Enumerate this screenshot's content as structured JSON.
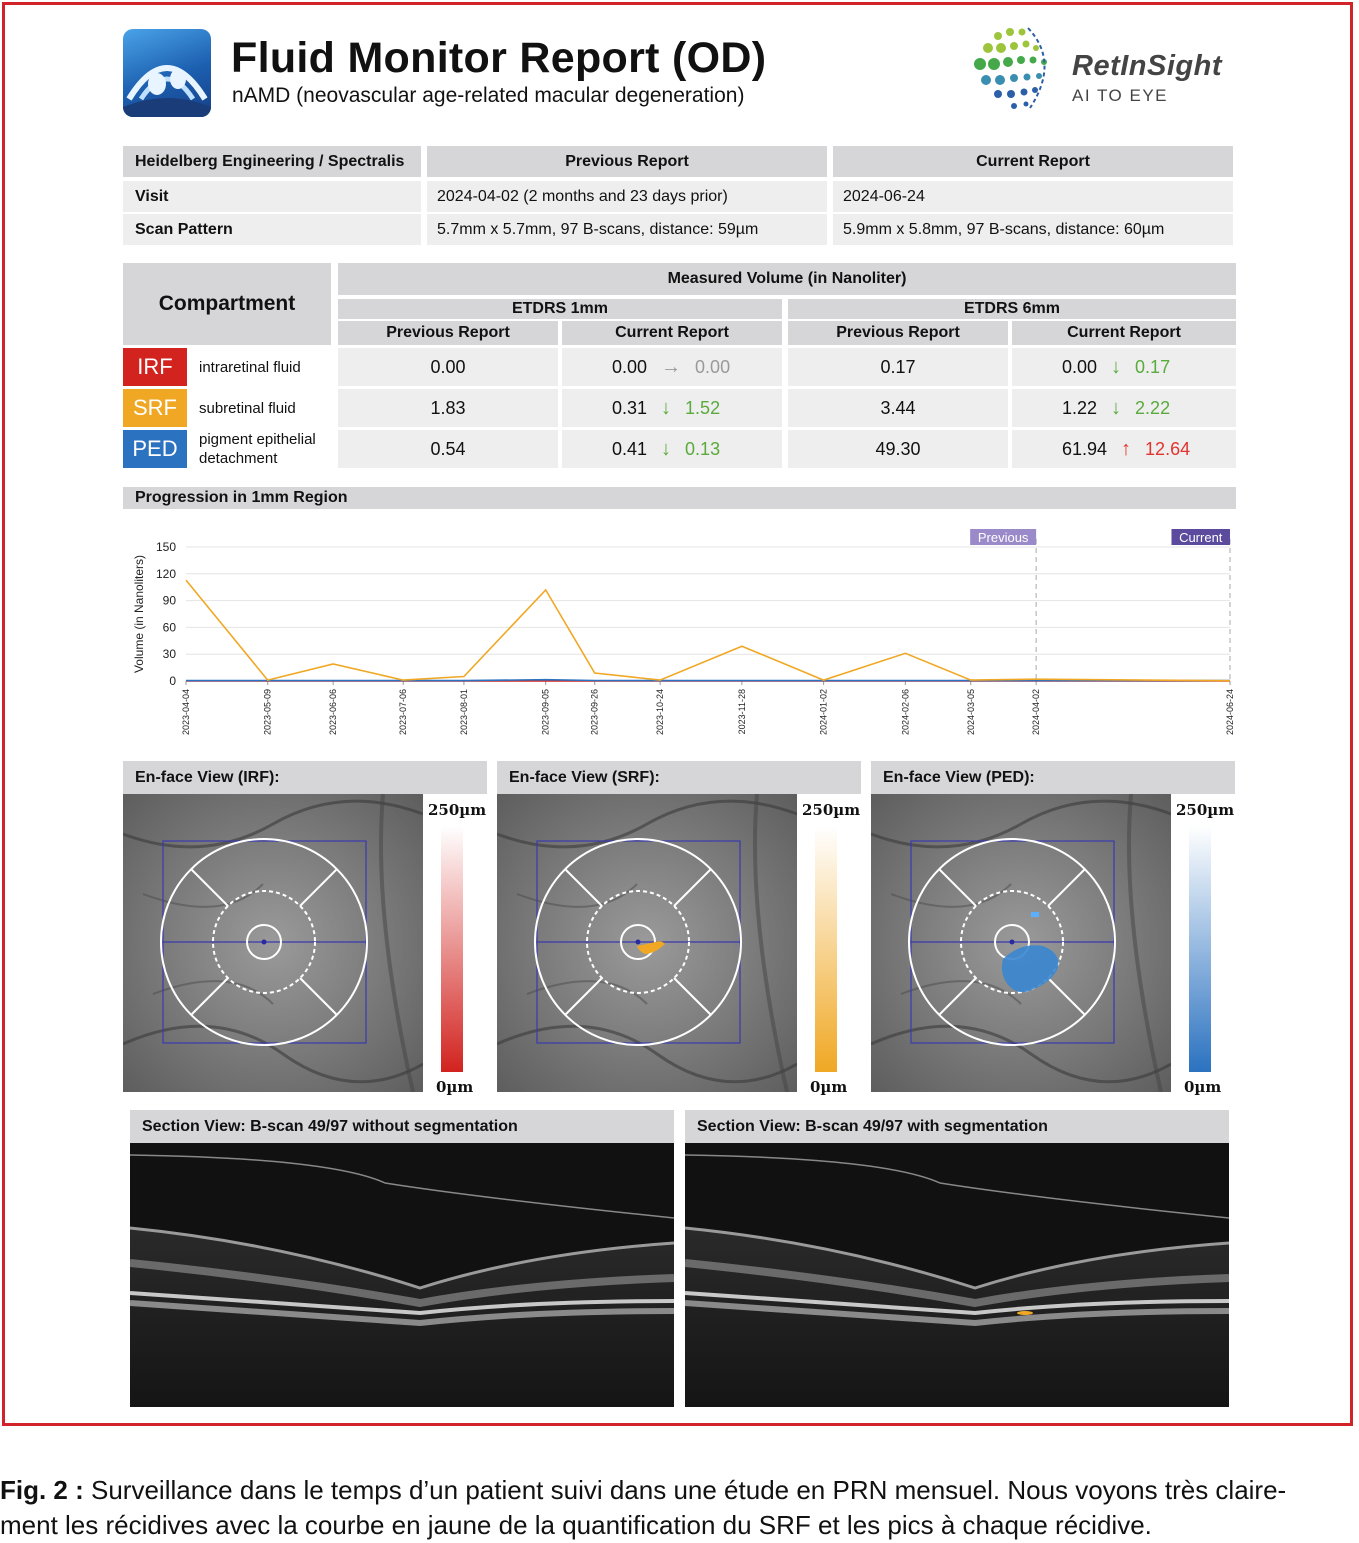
{
  "header": {
    "title": "Fluid Monitor Report (OD)",
    "subtitle": "nAMD (neovascular age-related macular degeneration)",
    "logo_name": "RetInSight",
    "logo_tagline": "AI TO EYE"
  },
  "visit_table": {
    "device": "Heidelberg Engineering / Spectralis",
    "prev_header": "Previous Report",
    "curr_header": "Current Report",
    "rows": [
      {
        "label": "Visit",
        "prev": "2024-04-02 (2 months and 23 days prior)",
        "curr": "2024-06-24"
      },
      {
        "label": "Scan Pattern",
        "prev": "5.7mm x 5.7mm, 97 B-scans, distance: 59µm",
        "curr": "5.9mm x 5.8mm, 97 B-scans, distance: 60µm"
      }
    ]
  },
  "volume_table": {
    "compartment_header": "Compartment",
    "measured_header": "Measured Volume (in Nanoliter)",
    "etdrs1": "ETDRS 1mm",
    "etdrs6": "ETDRS 6mm",
    "prev_header": "Previous Report",
    "curr_header": "Current Report",
    "rows": [
      {
        "code": "IRF",
        "name": "intraretinal fluid",
        "color": "#d2231f",
        "p1": "0.00",
        "c1": "0.00",
        "a1": "→",
        "d1": "0.00",
        "dc1": "#999999",
        "p6": "0.17",
        "c6": "0.00",
        "a6": "↓",
        "d6": "0.17",
        "dc6": "#5aaa3c"
      },
      {
        "code": "SRF",
        "name": "subretinal fluid",
        "color": "#f0a824",
        "p1": "1.83",
        "c1": "0.31",
        "a1": "↓",
        "d1": "1.52",
        "dc1": "#5aaa3c",
        "p6": "3.44",
        "c6": "1.22",
        "a6": "↓",
        "d6": "2.22",
        "dc6": "#5aaa3c"
      },
      {
        "code": "PED",
        "name": "pigment epithelial detachment",
        "color": "#2b72c0",
        "p1": "0.54",
        "c1": "0.41",
        "a1": "↓",
        "d1": "0.13",
        "dc1": "#5aaa3c",
        "p6": "49.30",
        "c6": "61.94",
        "a6": "↑",
        "d6": "12.64",
        "dc6": "#e0342e"
      }
    ]
  },
  "progression": {
    "title": "Progression in 1mm Region",
    "ylabel": "Volume (in Nanoliters)",
    "previous_marker": "Previous",
    "current_marker": "Current"
  },
  "chart_data": {
    "type": "line",
    "ylabel": "Volume (in Nanoliters)",
    "ylim": [
      0,
      150
    ],
    "yticks": [
      0,
      30,
      60,
      90,
      120,
      150
    ],
    "x": [
      "2023-04-04",
      "2023-05-09",
      "2023-06-06",
      "2023-07-06",
      "2023-08-01",
      "2023-09-05",
      "2023-09-26",
      "2023-10-24",
      "2023-11-28",
      "2024-01-02",
      "2024-02-06",
      "2024-03-05",
      "2024-04-02",
      "2024-06-24"
    ],
    "series": [
      {
        "name": "SRF",
        "color": "#f0a824",
        "values": [
          113,
          1,
          19,
          1,
          5,
          102,
          9,
          1,
          39,
          1,
          31,
          1,
          2,
          0.3
        ]
      },
      {
        "name": "PED",
        "color": "#2b72c0",
        "values": [
          0.5,
          0.5,
          0.5,
          0.5,
          0.5,
          1.5,
          0.6,
          0.5,
          0.5,
          0.5,
          0.5,
          0.5,
          0.5,
          0.4
        ]
      },
      {
        "name": "IRF",
        "color": "#d2231f",
        "values": [
          0,
          0,
          0,
          0,
          0,
          0,
          0,
          0,
          0,
          0,
          0,
          0,
          0,
          0
        ]
      }
    ],
    "markers": [
      {
        "label": "Previous",
        "x": "2024-04-02"
      },
      {
        "label": "Current",
        "x": "2024-06-24"
      }
    ],
    "grid": true
  },
  "enface": [
    {
      "title": "En-face View (IRF):",
      "scale_max": "250µm",
      "scale_min": "0µm",
      "color": "#d2231f"
    },
    {
      "title": "En-face View (SRF):",
      "scale_max": "250µm",
      "scale_min": "0µm",
      "color": "#f0a824"
    },
    {
      "title": "En-face View (PED):",
      "scale_max": "250µm",
      "scale_min": "0µm",
      "color": "#2b72c0"
    }
  ],
  "sections": [
    {
      "title": "Section View: B-scan 49/97 without segmentation"
    },
    {
      "title": "Section View: B-scan 49/97 with segmentation"
    }
  ],
  "caption": {
    "label": "Fig. 2 :",
    "line1": " Surveillance dans le temps d’un patient suivi dans une étude en PRN mensuel. Nous voyons très claire-",
    "line2": "ment les récidives avec la courbe en jaune de la quantification du SRF et les pics à chaque récidive."
  }
}
